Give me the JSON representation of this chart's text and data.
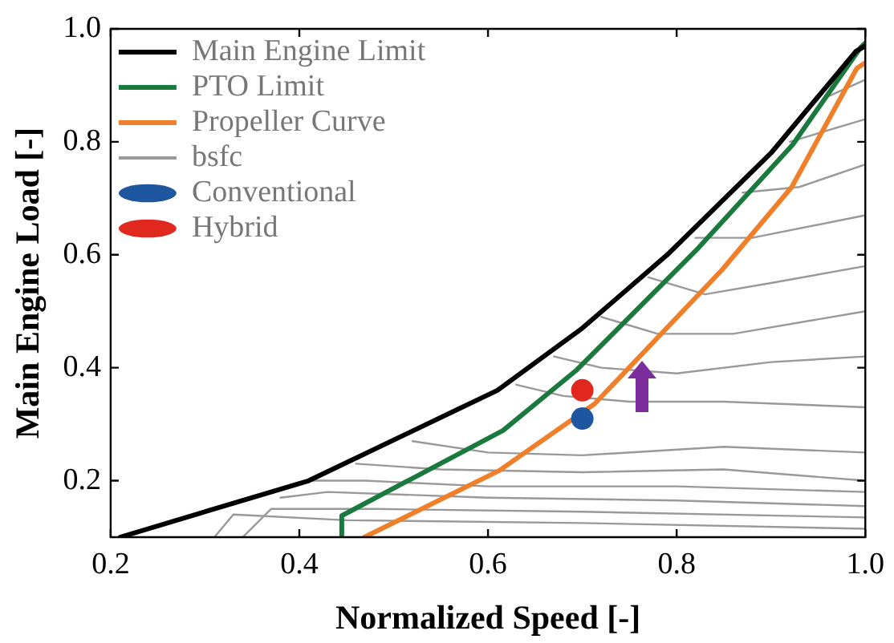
{
  "chart_data": {
    "type": "line",
    "xlabel": "Normalized Speed [-]",
    "ylabel": "Main Engine Load [-]",
    "xlim": [
      0.2,
      1.0
    ],
    "ylim": [
      0.1,
      1.0
    ],
    "xticks": [
      0.2,
      0.4,
      0.6,
      0.8,
      {
        "value": 1,
        "label": "1.0"
      }
    ],
    "yticks": [
      0.2,
      0.4,
      0.6,
      0.8,
      {
        "value": 1,
        "label": "1.0"
      }
    ],
    "legend": "top left",
    "marker": "none",
    "line_style": "solid",
    "series": [
      {
        "name": "Main Engine Limit",
        "color": "#000000",
        "x": [
          0.21,
          0.41,
          0.61,
          0.7,
          0.79,
          0.9,
          0.99,
          1.0
        ],
        "values": [
          0.1,
          0.2,
          0.36,
          0.47,
          0.6,
          0.78,
          0.96,
          0.97
        ]
      },
      {
        "name": "PTO Limit",
        "color": "#1a7a3e",
        "x": [
          0.445,
          0.445,
          0.616,
          0.694,
          0.823,
          0.923,
          0.995,
          1.0
        ],
        "values": [
          0.1,
          0.138,
          0.289,
          0.396,
          0.612,
          0.795,
          0.967,
          0.975
        ]
      },
      {
        "name": "Propeller Curve",
        "color": "#f07f2a",
        "x": [
          0.469,
          0.612,
          0.713,
          0.848,
          0.922,
          0.991,
          1.0
        ],
        "values": [
          0.1,
          0.218,
          0.336,
          0.573,
          0.72,
          0.93,
          0.94
        ]
      },
      {
        "name": "bsfc",
        "color": "#999999",
        "x": [
          0.31,
          0.33,
          0.45,
          0.7,
          1.0
        ],
        "values": [
          0.1,
          0.14,
          0.13,
          0.125,
          0.115
        ]
      },
      {
        "color": "#999999",
        "x": [
          0.34,
          0.37,
          0.48,
          0.7,
          1.0
        ],
        "values": [
          0.1,
          0.15,
          0.15,
          0.145,
          0.135
        ]
      },
      {
        "color": "#999999",
        "x": [
          0.38,
          0.43,
          0.6,
          0.8,
          1.0
        ],
        "values": [
          0.17,
          0.18,
          0.17,
          0.165,
          0.155
        ]
      },
      {
        "color": "#999999",
        "x": [
          0.41,
          0.47,
          0.6,
          0.8,
          1.0
        ],
        "values": [
          0.2,
          0.2,
          0.19,
          0.19,
          0.18
        ]
      },
      {
        "color": "#999999",
        "x": [
          0.46,
          0.55,
          0.7,
          0.85,
          1.0
        ],
        "values": [
          0.23,
          0.22,
          0.215,
          0.22,
          0.2
        ]
      },
      {
        "color": "#999999",
        "x": [
          0.52,
          0.6,
          0.7,
          0.85,
          1.0
        ],
        "values": [
          0.27,
          0.25,
          0.245,
          0.26,
          0.25
        ]
      },
      {
        "color": "#999999",
        "x": [
          0.63,
          0.68,
          0.75,
          0.85,
          1.0
        ],
        "values": [
          0.37,
          0.35,
          0.34,
          0.34,
          0.33
        ]
      },
      {
        "color": "#999999",
        "x": [
          0.67,
          0.72,
          0.8,
          0.9,
          1.0
        ],
        "values": [
          0.42,
          0.4,
          0.39,
          0.41,
          0.42
        ]
      },
      {
        "color": "#999999",
        "x": [
          0.72,
          0.78,
          0.86,
          1.0
        ],
        "values": [
          0.49,
          0.46,
          0.46,
          0.5
        ]
      },
      {
        "color": "#999999",
        "x": [
          0.77,
          0.83,
          0.9,
          1.0
        ],
        "values": [
          0.56,
          0.53,
          0.55,
          0.58
        ]
      },
      {
        "color": "#999999",
        "x": [
          0.82,
          0.88,
          1.0
        ],
        "values": [
          0.63,
          0.63,
          0.67
        ]
      },
      {
        "color": "#999999",
        "x": [
          0.87,
          0.93,
          1.0
        ],
        "values": [
          0.71,
          0.72,
          0.76
        ]
      },
      {
        "color": "#999999",
        "x": [
          0.92,
          1.0
        ],
        "values": [
          0.8,
          0.84
        ]
      },
      {
        "color": "#999999",
        "x": [
          0.96,
          1.0
        ],
        "values": [
          0.88,
          0.91
        ]
      },
      {
        "name": "Conventional",
        "type": "scatter",
        "marker": "circle",
        "color": "#1f56a0",
        "x": [
          0.7
        ],
        "values": [
          0.31
        ]
      },
      {
        "name": "Hybrid",
        "type": "scatter",
        "marker": "circle",
        "color": "#e0281e",
        "x": [
          0.7
        ],
        "values": [
          0.36
        ]
      }
    ]
  }
}
